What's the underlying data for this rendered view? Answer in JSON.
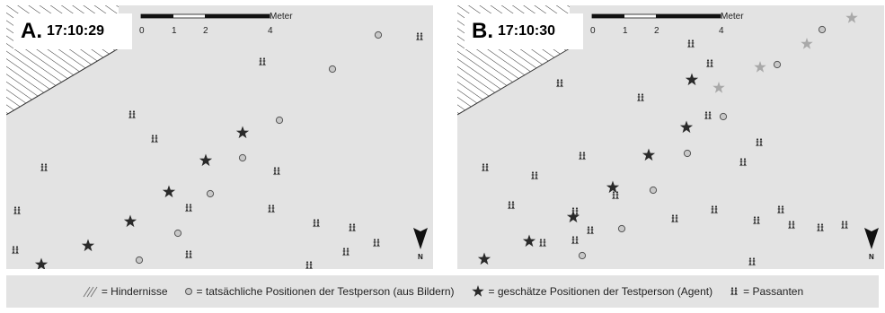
{
  "panels": [
    {
      "letter": "A.",
      "time": "17:10:29",
      "scale": {
        "unit": "Meter",
        "ticks": [
          "0",
          "1",
          "2",
          "4"
        ]
      },
      "north": "N",
      "actual_positions": [
        [
          414,
          33
        ],
        [
          363,
          71
        ],
        [
          304,
          128
        ],
        [
          263,
          170
        ],
        [
          227,
          210
        ],
        [
          191,
          254
        ],
        [
          148,
          284
        ]
      ],
      "estimated_positions": [
        [
          263,
          142
        ],
        [
          222,
          173
        ],
        [
          181,
          208
        ],
        [
          138,
          241
        ],
        [
          91,
          268
        ],
        [
          39,
          289
        ]
      ],
      "pedestrians": [
        [
          460,
          35
        ],
        [
          285,
          63
        ],
        [
          140,
          122
        ],
        [
          165,
          149
        ],
        [
          42,
          181
        ],
        [
          301,
          185
        ],
        [
          203,
          226
        ],
        [
          295,
          227
        ],
        [
          12,
          229
        ],
        [
          345,
          243
        ],
        [
          385,
          248
        ],
        [
          412,
          265
        ],
        [
          203,
          278
        ],
        [
          378,
          275
        ],
        [
          10,
          273
        ],
        [
          337,
          290
        ]
      ]
    },
    {
      "letter": "B.",
      "time": "17:10:30",
      "scale": {
        "unit": "Meter",
        "ticks": [
          "0",
          "1",
          "2",
          "4"
        ]
      },
      "north": "N",
      "actual_positions": [
        [
          406,
          27
        ],
        [
          356,
          66
        ],
        [
          296,
          124
        ],
        [
          256,
          165
        ],
        [
          218,
          206
        ],
        [
          183,
          249
        ],
        [
          139,
          279
        ]
      ],
      "estimated_positions": [
        [
          261,
          83
        ],
        [
          255,
          136
        ],
        [
          213,
          167
        ],
        [
          173,
          203
        ],
        [
          129,
          236
        ],
        [
          80,
          263
        ],
        [
          30,
          283
        ]
      ],
      "prior_estimates": [
        [
          439,
          14
        ],
        [
          389,
          43
        ],
        [
          337,
          69
        ],
        [
          291,
          92
        ]
      ],
      "pedestrians": [
        [
          260,
          43
        ],
        [
          281,
          65
        ],
        [
          114,
          87
        ],
        [
          204,
          103
        ],
        [
          279,
          123
        ],
        [
          336,
          153
        ],
        [
          139,
          168
        ],
        [
          31,
          181
        ],
        [
          86,
          190
        ],
        [
          318,
          175
        ],
        [
          176,
          212
        ],
        [
          60,
          223
        ],
        [
          131,
          230
        ],
        [
          148,
          251
        ],
        [
          242,
          238
        ],
        [
          286,
          228
        ],
        [
          333,
          240
        ],
        [
          372,
          245
        ],
        [
          360,
          228
        ],
        [
          404,
          248
        ],
        [
          431,
          245
        ],
        [
          95,
          265
        ],
        [
          131,
          262
        ],
        [
          328,
          286
        ]
      ]
    }
  ],
  "legend": {
    "obstacles": "= Hindernisse",
    "actual": "= tatsächliche Positionen der Testperson (aus Bildern)",
    "estimated": "= geschätze Positionen der Testperson (Agent)",
    "pedestrians": "= Passanten"
  },
  "colors": {
    "panel_bg": "#e3e3e3",
    "star": "#2a2a2a",
    "star_prior": "#a9a9a9",
    "circle_fill": "#c8c8c8",
    "circle_stroke": "#555555",
    "hatch": "#333333"
  }
}
